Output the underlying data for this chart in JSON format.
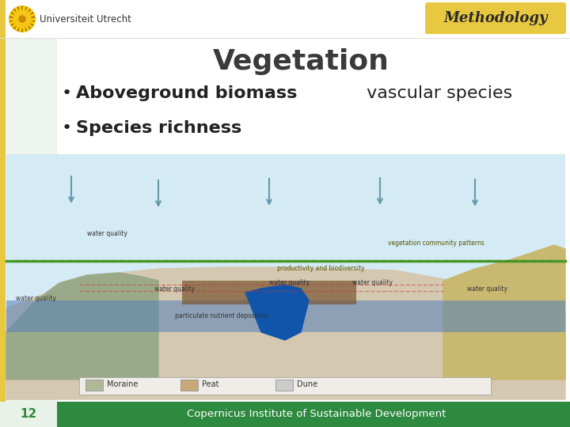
{
  "title": "Vegetation",
  "title_color": "#3a3a3a",
  "bullet1_bold": "Aboveground biomass",
  "bullet1_normal": " vascular species",
  "bullet2_bold": "Species richness",
  "methodology_text": "Methodology",
  "methodology_bg": "#e8c840",
  "methodology_text_color": "#2a2a2a",
  "footer_text": "Copernicus Institute of Sustainable Development",
  "footer_bg": "#2d8a3e",
  "footer_text_color": "#ffffff",
  "page_number": "12",
  "page_num_color": "#2d8a3e",
  "bg_color": "#ffffff",
  "left_bar_color": "#e8c840",
  "left_stripe_color": "#eef4ee",
  "university_name": "Universiteit Utrecht",
  "header_line_color": "#cccccc",
  "diagram_sky": "#cce8f0",
  "diagram_water": "#5599cc",
  "diagram_ground_top": "#6aaa3a",
  "diagram_ground_mid": "#8b7040",
  "diagram_ground_deep": "#a08050",
  "diagram_hill_left": "#9aaa8a",
  "diagram_hill_right": "#aab090",
  "diagram_dune": "#c8b878",
  "diagram_peat": "#8a6030",
  "diagram_bg_lower": "#d4c8b0"
}
